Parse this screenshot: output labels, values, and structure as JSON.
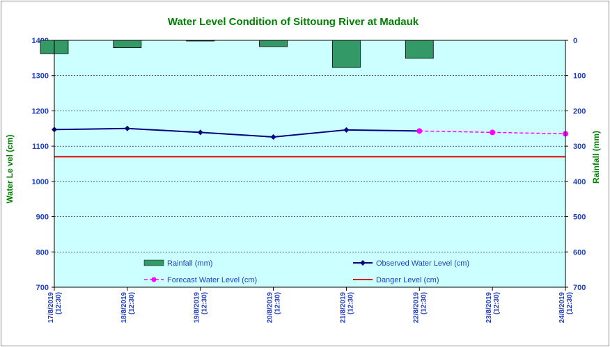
{
  "chart_data": {
    "type": "line",
    "title": "Water Level Condition of Sittoung River at  Madauk",
    "ylabel": "Water Le vel (cm)",
    "y2label": "Rainfall (mm)",
    "ylim": [
      700,
      1400
    ],
    "y2lim": [
      0,
      700
    ],
    "y2_inverted": true,
    "grid": true,
    "legend_position": "lower-center",
    "categories": [
      [
        "17/8/2019",
        "(12:30)"
      ],
      [
        "18/8/2019",
        "(12:30)"
      ],
      [
        "19/8/2019",
        "(12:30)"
      ],
      [
        "20/8/2019",
        "(12:30)"
      ],
      [
        "21/8/2019",
        "(12:30)"
      ],
      [
        "22/8/2019",
        "(12:30)"
      ],
      [
        "23/8/2019",
        "(12:30)"
      ],
      [
        "24/8/2019",
        "(12:30)"
      ]
    ],
    "rainfall": {
      "name": "Rainfall (mm)",
      "color": "#339966",
      "values": [
        38,
        21,
        2,
        18,
        77,
        51,
        null,
        null
      ]
    },
    "observed": {
      "name": "Observed Water Level (cm)",
      "color": "#000080",
      "values": [
        1147,
        1150,
        1139,
        1126,
        1146,
        1143,
        null,
        null
      ]
    },
    "forecast": {
      "name": "Forecast Water Level (cm)",
      "color": "#ff00ff",
      "values": [
        null,
        null,
        null,
        null,
        null,
        1143,
        1139,
        1135
      ]
    },
    "danger": {
      "name": "Danger Level (cm)",
      "color": "#e00000",
      "value": 1070
    },
    "plot_bg": "#ccffff"
  }
}
